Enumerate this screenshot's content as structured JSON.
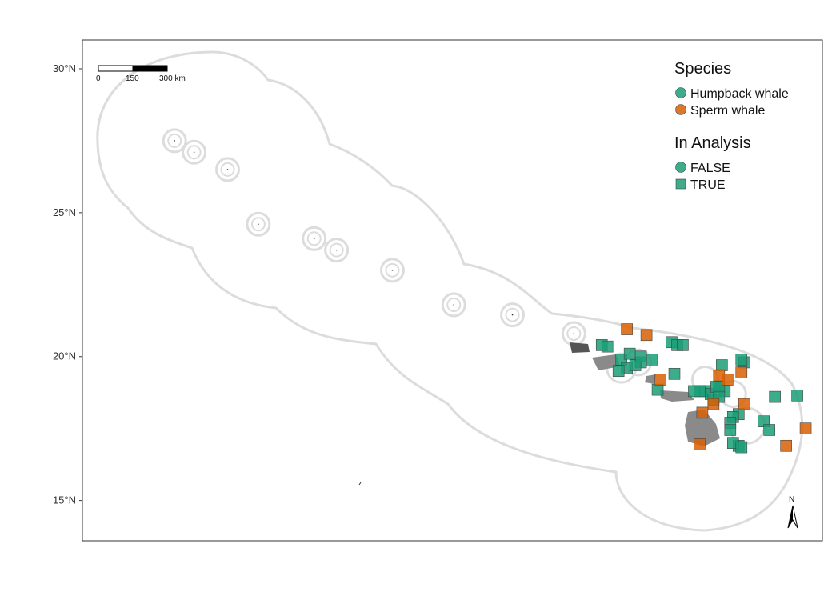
{
  "chart_data": {
    "type": "scatter",
    "map_type": "point map with study-area buffer",
    "y_axis": {
      "ticks": [
        {
          "lat": 30,
          "label": "30°N"
        },
        {
          "lat": 25,
          "label": "25°N"
        },
        {
          "lat": 20,
          "label": "20°N"
        },
        {
          "lat": 15,
          "label": "15°N"
        }
      ],
      "ylim": [
        13.6,
        31.0
      ]
    },
    "x_axis": {
      "xlim": [
        -179.5,
        -153.0
      ],
      "labels_shown": false
    },
    "grid": false,
    "legend": {
      "position": "top-right",
      "species_title": "Species",
      "species": [
        {
          "label": "Humpback whale",
          "color": "#1b9e77"
        },
        {
          "label": "Sperm whale",
          "color": "#d95f02"
        }
      ],
      "analysis_title": "In Analysis",
      "analysis": [
        {
          "label": "FALSE",
          "shape": "circle"
        },
        {
          "label": "TRUE",
          "shape": "square"
        }
      ]
    },
    "scale_bar": {
      "labels": [
        "0",
        "150",
        "300 km"
      ]
    },
    "north_arrow": {
      "label": "N"
    },
    "colors": {
      "humpback": "#1b9e77",
      "sperm": "#d95f02",
      "buffer": "#dcdcdc",
      "land": "#555555",
      "land_light": "#8a8a8a"
    },
    "islands": [
      {
        "lon": -176.2,
        "lat": 27.5
      },
      {
        "lon": -175.5,
        "lat": 27.1
      },
      {
        "lon": -174.3,
        "lat": 26.5
      },
      {
        "lon": -173.2,
        "lat": 24.6
      },
      {
        "lon": -171.2,
        "lat": 24.1
      },
      {
        "lon": -170.4,
        "lat": 23.7
      },
      {
        "lon": -168.4,
        "lat": 23.0
      },
      {
        "lon": -166.2,
        "lat": 21.8
      },
      {
        "lon": -164.1,
        "lat": 21.45
      },
      {
        "lon": -161.9,
        "lat": 20.8
      }
    ],
    "series": [
      {
        "name": "Humpback whale",
        "in_analysis": "TRUE",
        "points": [
          [
            -160.9,
            20.4
          ],
          [
            -160.7,
            20.35
          ],
          [
            -160.2,
            19.9
          ],
          [
            -159.9,
            20.1
          ],
          [
            -160.0,
            19.6
          ],
          [
            -160.3,
            19.5
          ],
          [
            -159.5,
            19.8
          ],
          [
            -159.7,
            19.7
          ],
          [
            -159.1,
            19.9
          ],
          [
            -159.5,
            20.0
          ],
          [
            -158.4,
            20.5
          ],
          [
            -158.2,
            20.4
          ],
          [
            -158.0,
            20.4
          ],
          [
            -158.9,
            18.85
          ],
          [
            -158.3,
            19.4
          ],
          [
            -157.6,
            18.8
          ],
          [
            -157.2,
            18.8
          ],
          [
            -157.0,
            18.7
          ],
          [
            -156.9,
            18.5
          ],
          [
            -157.4,
            18.8
          ],
          [
            -156.6,
            19.7
          ],
          [
            -156.5,
            18.8
          ],
          [
            -156.7,
            18.95
          ],
          [
            -156.0,
            18.0
          ],
          [
            -156.2,
            17.9
          ],
          [
            -156.3,
            17.7
          ],
          [
            -156.3,
            17.45
          ],
          [
            -156.0,
            16.9
          ],
          [
            -156.2,
            17.0
          ],
          [
            -155.9,
            16.85
          ],
          [
            -155.1,
            17.75
          ],
          [
            -154.9,
            17.45
          ],
          [
            -154.7,
            18.6
          ],
          [
            -153.9,
            18.65
          ],
          [
            -155.8,
            19.8
          ],
          [
            -155.9,
            19.9
          ],
          [
            -156.8,
            18.95
          ],
          [
            -156.7,
            18.6
          ]
        ]
      },
      {
        "name": "Sperm whale",
        "in_analysis": "TRUE",
        "points": [
          [
            -160.0,
            20.95
          ],
          [
            -159.3,
            20.75
          ],
          [
            -158.8,
            19.2
          ],
          [
            -156.7,
            19.35
          ],
          [
            -156.4,
            19.2
          ],
          [
            -155.9,
            19.45
          ],
          [
            -155.8,
            18.35
          ],
          [
            -156.9,
            18.35
          ],
          [
            -157.3,
            18.05
          ],
          [
            -157.4,
            16.95
          ],
          [
            -154.3,
            16.9
          ],
          [
            -153.6,
            17.5
          ]
        ]
      }
    ]
  }
}
